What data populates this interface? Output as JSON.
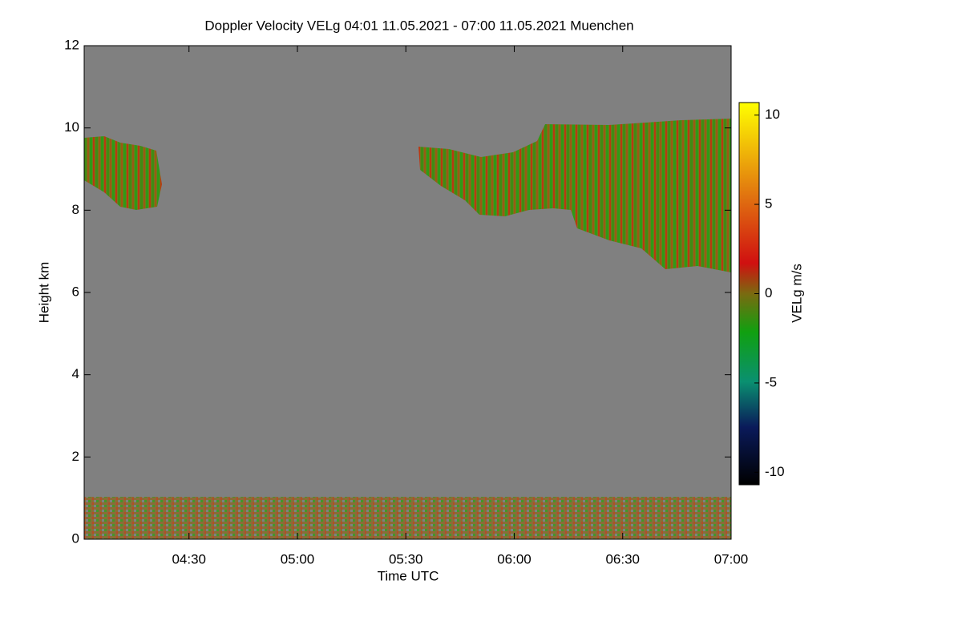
{
  "chart_data": {
    "type": "heatmap",
    "title": "Doppler Velocity VELg   04:01 11.05.2021 - 07:00 11.05.2021 Muenchen",
    "x_label": "Time UTC",
    "y_label": "Height km",
    "colorbar_label": "VELg m/s",
    "xlim": [
      "04:01",
      "07:00"
    ],
    "xticks": [
      "04:30",
      "05:00",
      "05:30",
      "06:00",
      "06:30",
      "07:00"
    ],
    "ylim": [
      0,
      12
    ],
    "yticks": [
      0,
      2,
      4,
      6,
      8,
      10,
      12
    ],
    "colorbar_lim": [
      -10.7,
      10.7
    ],
    "colorbar_ticks": [
      10,
      5,
      0,
      -5,
      -10
    ],
    "background_color": "#808080"
  }
}
